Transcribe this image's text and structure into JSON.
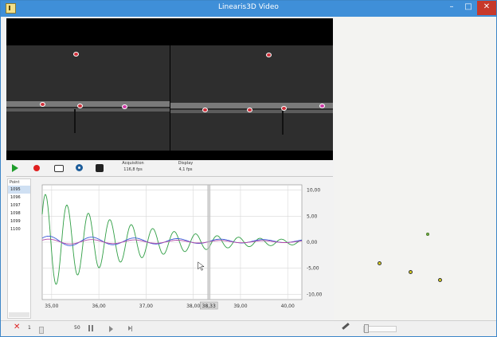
{
  "window": {
    "title": "Linearis3D Video",
    "minimize_label": "–",
    "maximize_label": "□",
    "close_label": "✕",
    "titlebar_color": "#3f8fd8"
  },
  "controls": {
    "acquisition_label": "Acquisition",
    "acquisition_value": "116,8 fps",
    "display_label": "Display",
    "display_value": "4,1 fps",
    "icons": [
      "play-icon",
      "record-icon",
      "camera-icon",
      "target-icon",
      "tracking-icon"
    ]
  },
  "point_list": {
    "header": "Point",
    "items": [
      "1095",
      "1096",
      "1097",
      "1098",
      "1099",
      "1100"
    ],
    "selected_index": 0
  },
  "chart_data": {
    "type": "line",
    "title": "",
    "xlabel": "",
    "ylabel": "",
    "xlim": [
      34.8,
      40.3
    ],
    "ylim": [
      -11,
      11
    ],
    "x_ticks": [
      "35,00",
      "36,00",
      "37,00",
      "38,00",
      "39,00",
      "40,00"
    ],
    "y_ticks": [
      "10,00",
      "5,00",
      "0,00",
      "-5,00",
      "-10,00"
    ],
    "grid": true,
    "cursor_x": 38.33,
    "cursor_label": "38,33",
    "series": [
      {
        "color": "#2f9e44",
        "amplitude": 9.5,
        "decay": 0.55,
        "freq_hz": 2.2,
        "offset": 0
      },
      {
        "color": "#3a5bd9",
        "amplitude": 1.0,
        "decay": 0.25,
        "freq_hz": 1.1,
        "offset": 0.2
      },
      {
        "color": "#b04aa6",
        "amplitude": 0.5,
        "decay": 0.2,
        "freq_hz": 1.1,
        "offset": 0.1
      }
    ]
  },
  "statusbar": {
    "frame_start": "1",
    "frame_step": "50"
  }
}
